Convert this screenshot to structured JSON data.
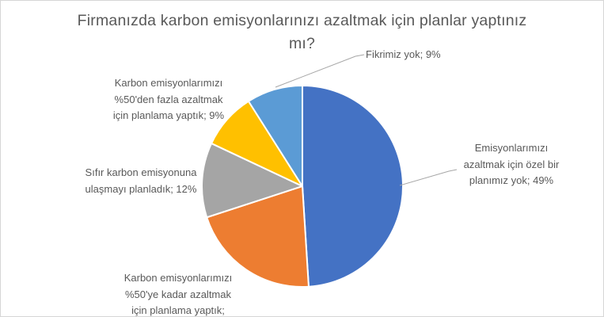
{
  "header": {
    "title_lines": [
      "Firmanızda karbon emisyonlarınızı azaltmak için planlar yaptınız",
      "mı?"
    ]
  },
  "labels": {
    "top": {
      "lines": [
        "Fikrimiz yok; 9%"
      ]
    },
    "upper_left": {
      "lines": [
        "Karbon emisyonlarımızı",
        "%50'den fazla azaltmak",
        "için planlama yaptık; 9%"
      ]
    },
    "left": {
      "lines": [
        "Sıfır karbon emisyonuna",
        "ulaşmayı planladık; 12%"
      ]
    },
    "bottom": {
      "lines": [
        "Karbon emisyonlarımızı",
        "%50'ye kadar azaltmak",
        "için planlama yaptık;"
      ]
    },
    "right": {
      "lines": [
        "Emisyonlarımızı",
        "azaltmak için özel bir",
        "planımız yok; 49%"
      ]
    }
  },
  "colors": {
    "title_text": "#595959",
    "label_text": "#595959",
    "leader_line": "#a6a6a6",
    "slice_border": "#ffffff",
    "frame_border": "#d6d6d6",
    "background": "#ffffff"
  },
  "chart_data": {
    "type": "pie",
    "title": "Firmanızda karbon emisyonlarınızı azaltmak için planlar yaptınız mı?",
    "start_angle_deg": 0,
    "direction": "clockwise",
    "legend": "none",
    "slices": [
      {
        "label": "Emisyonlarımızı azaltmak için özel bir planımız yok",
        "value": 49,
        "display": "Emisyonlarımızı azaltmak için özel bir planımız yok; 49%",
        "color": "#4472C4"
      },
      {
        "label": "Karbon emisyonlarımızı %50'ye kadar azaltmak için planlama yaptık",
        "value": 21,
        "display": "Karbon emisyonlarımızı %50'ye kadar azaltmak için planlama yaptık;",
        "color": "#ED7D31"
      },
      {
        "label": "Sıfır karbon emisyonuna ulaşmayı planladık",
        "value": 12,
        "display": "Sıfır karbon emisyonuna ulaşmayı planladık; 12%",
        "color": "#A5A5A5"
      },
      {
        "label": "Karbon emisyonlarımızı %50'den fazla azaltmak için planlama yaptık",
        "value": 9,
        "display": "Karbon emisyonlarımızı %50'den fazla azaltmak için planlama yaptık; 9%",
        "color": "#FFC000"
      },
      {
        "label": "Fikrimiz yok",
        "value": 9,
        "display": "Fikrimiz yok; 9%",
        "color": "#5B9BD5"
      }
    ]
  }
}
